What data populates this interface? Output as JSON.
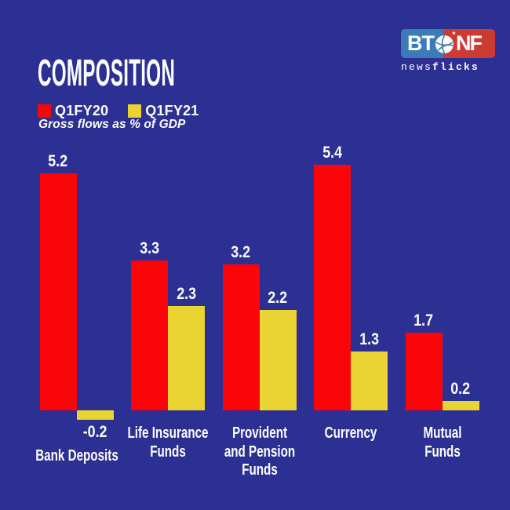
{
  "header": {
    "title": "COMPOSITION",
    "subtitle": "Gross flows as % of GDP"
  },
  "legend": [
    {
      "label": "Q1FY20",
      "color": "#fa0508"
    },
    {
      "label": "Q1FY21",
      "color": "#e9d431"
    }
  ],
  "logo": {
    "bt": "BT",
    "nf": "NF",
    "news": "news",
    "flicks": "flicks",
    "blue": "#3c7ab8",
    "red": "#cc3b31"
  },
  "colors": {
    "background": "#2d3093",
    "bar_red": "#fa0508",
    "bar_yellow": "#e9d431",
    "text": "#ffffff"
  },
  "chart_data": {
    "type": "bar",
    "title": "COMPOSITION",
    "subtitle": "Gross flows as % of GDP",
    "categories": [
      "Bank Deposits",
      "Life Insurance Funds",
      "Provident and Pension Funds",
      "Currency",
      "Mutual Funds"
    ],
    "category_lines": [
      [
        "Bank Deposits"
      ],
      [
        "Life Insurance",
        "Funds"
      ],
      [
        "Provident",
        "and Pension",
        "Funds"
      ],
      [
        "Currency"
      ],
      [
        "Mutual",
        "Funds"
      ]
    ],
    "series": [
      {
        "name": "Q1FY20",
        "color": "#fa0508",
        "values": [
          5.2,
          3.3,
          3.2,
          5.4,
          1.7
        ]
      },
      {
        "name": "Q1FY21",
        "color": "#e9d431",
        "values": [
          -0.2,
          2.3,
          2.2,
          1.3,
          0.2
        ]
      }
    ],
    "value_labels": [
      [
        "5.2",
        "3.3",
        "3.2",
        "5.4",
        "1.7"
      ],
      [
        "-0.2",
        "2.3",
        "2.2",
        "1.3",
        "0.2"
      ]
    ],
    "xlabel": "",
    "ylabel": "Gross flows as % of GDP",
    "ylim": [
      -0.5,
      6
    ],
    "grid": false,
    "legend_position": "top-left"
  }
}
